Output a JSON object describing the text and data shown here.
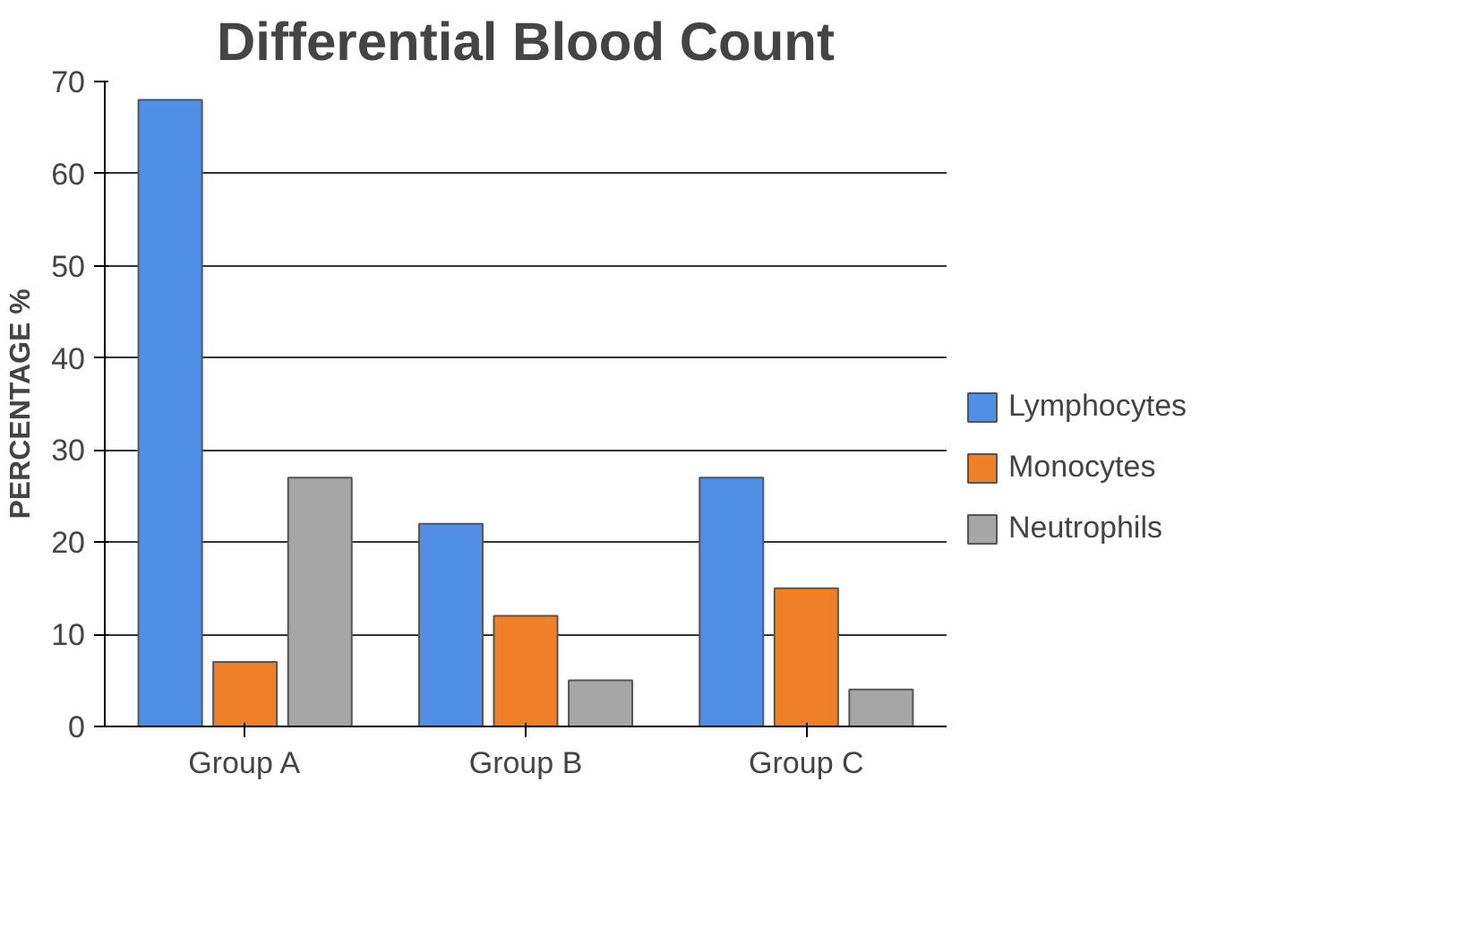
{
  "chart_data": {
    "type": "bar",
    "title": "Differential Blood Count",
    "ylabel": "PERCENTAGE %",
    "categories": [
      "Group A",
      "Group B",
      "Group C"
    ],
    "series": [
      {
        "name": "Lymphocytes",
        "color": "#4f8fe6",
        "values": [
          68,
          22,
          27
        ]
      },
      {
        "name": "Monocytes",
        "color": "#f07f2a",
        "values": [
          7,
          12,
          15
        ]
      },
      {
        "name": "Neutrophils",
        "color": "#a6a6a6",
        "values": [
          27,
          5,
          4
        ]
      }
    ],
    "ylim": [
      0,
      70
    ],
    "yticks": [
      0,
      10,
      20,
      30,
      40,
      50,
      60,
      70
    ],
    "grid": "y",
    "legend": "right"
  }
}
